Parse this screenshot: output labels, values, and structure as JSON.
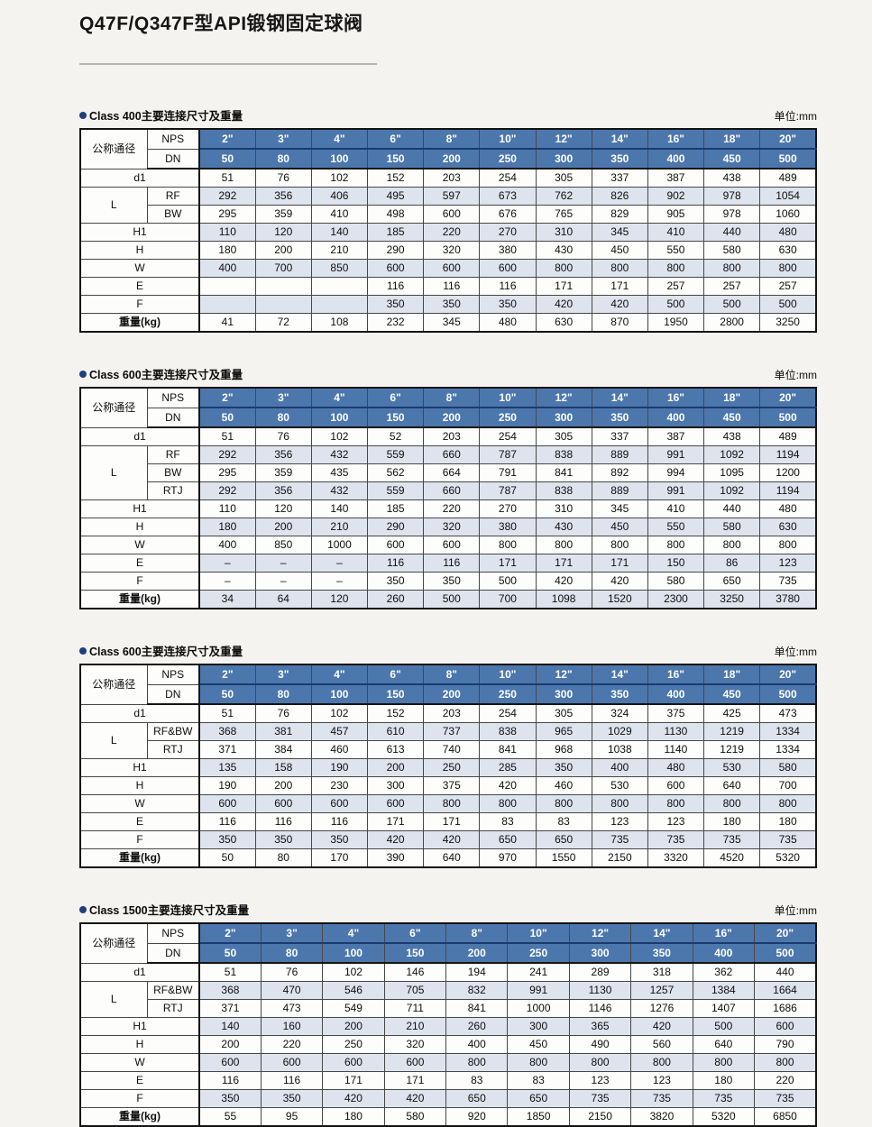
{
  "page": {
    "title": "Q47F/Q347F型API锻钢固定球阀"
  },
  "header_labels": {
    "size_group": "公称通径",
    "nps": "NPS",
    "dn": "DN"
  },
  "tables": [
    {
      "title": "Class 400主要连接尺寸及重量",
      "unit": "单位:mm",
      "nps": [
        "2\"",
        "3\"",
        "4\"",
        "6\"",
        "8\"",
        "10\"",
        "12\"",
        "14\"",
        "16\"",
        "18\"",
        "20\""
      ],
      "dn": [
        "50",
        "80",
        "100",
        "150",
        "200",
        "250",
        "300",
        "350",
        "400",
        "450",
        "500"
      ],
      "rows": [
        {
          "label": "d1",
          "values": [
            "51",
            "76",
            "102",
            "152",
            "203",
            "254",
            "305",
            "337",
            "387",
            "438",
            "489"
          ]
        },
        {
          "group": "L",
          "group_span": 2,
          "label": "RF",
          "values": [
            "292",
            "356",
            "406",
            "495",
            "597",
            "673",
            "762",
            "826",
            "902",
            "978",
            "1054"
          ]
        },
        {
          "label": "BW",
          "in_group": true,
          "values": [
            "295",
            "359",
            "410",
            "498",
            "600",
            "676",
            "765",
            "829",
            "905",
            "978",
            "1060"
          ]
        },
        {
          "label": "H1",
          "values": [
            "110",
            "120",
            "140",
            "185",
            "220",
            "270",
            "310",
            "345",
            "410",
            "440",
            "480"
          ]
        },
        {
          "label": "H",
          "values": [
            "180",
            "200",
            "210",
            "290",
            "320",
            "380",
            "430",
            "450",
            "550",
            "580",
            "630"
          ]
        },
        {
          "label": "W",
          "values": [
            "400",
            "700",
            "850",
            "600",
            "600",
            "600",
            "800",
            "800",
            "800",
            "800",
            "800"
          ]
        },
        {
          "label": "E",
          "values": [
            "",
            "",
            "",
            "116",
            "116",
            "116",
            "171",
            "171",
            "257",
            "257",
            "257"
          ]
        },
        {
          "label": "F",
          "values": [
            "",
            "",
            "",
            "350",
            "350",
            "350",
            "420",
            "420",
            "500",
            "500",
            "500"
          ]
        },
        {
          "label": "重量(kg)",
          "bold": true,
          "values": [
            "41",
            "72",
            "108",
            "232",
            "345",
            "480",
            "630",
            "870",
            "1950",
            "2800",
            "3250"
          ]
        }
      ]
    },
    {
      "title": "Class 600主要连接尺寸及重量",
      "unit": "单位:mm",
      "nps": [
        "2\"",
        "3\"",
        "4\"",
        "6\"",
        "8\"",
        "10\"",
        "12\"",
        "14\"",
        "16\"",
        "18\"",
        "20\""
      ],
      "dn": [
        "50",
        "80",
        "100",
        "150",
        "200",
        "250",
        "300",
        "350",
        "400",
        "450",
        "500"
      ],
      "rows": [
        {
          "label": "d1",
          "values": [
            "51",
            "76",
            "102",
            "52",
            "203",
            "254",
            "305",
            "337",
            "387",
            "438",
            "489"
          ]
        },
        {
          "group": "L",
          "group_span": 3,
          "label": "RF",
          "values": [
            "292",
            "356",
            "432",
            "559",
            "660",
            "787",
            "838",
            "889",
            "991",
            "1092",
            "1194"
          ]
        },
        {
          "label": "BW",
          "in_group": true,
          "values": [
            "295",
            "359",
            "435",
            "562",
            "664",
            "791",
            "841",
            "892",
            "994",
            "1095",
            "1200"
          ]
        },
        {
          "label": "RTJ",
          "in_group": true,
          "values": [
            "292",
            "356",
            "432",
            "559",
            "660",
            "787",
            "838",
            "889",
            "991",
            "1092",
            "1194"
          ]
        },
        {
          "label": "H1",
          "values": [
            "110",
            "120",
            "140",
            "185",
            "220",
            "270",
            "310",
            "345",
            "410",
            "440",
            "480"
          ]
        },
        {
          "label": "H",
          "values": [
            "180",
            "200",
            "210",
            "290",
            "320",
            "380",
            "430",
            "450",
            "550",
            "580",
            "630"
          ]
        },
        {
          "label": "W",
          "values": [
            "400",
            "850",
            "1000",
            "600",
            "600",
            "800",
            "800",
            "800",
            "800",
            "800",
            "800"
          ]
        },
        {
          "label": "E",
          "values": [
            "–",
            "–",
            "–",
            "116",
            "116",
            "171",
            "171",
            "171",
            "150",
            "86",
            "123"
          ]
        },
        {
          "label": "F",
          "values": [
            "–",
            "–",
            "–",
            "350",
            "350",
            "500",
            "420",
            "420",
            "580",
            "650",
            "735"
          ]
        },
        {
          "label": "重量(kg)",
          "bold": true,
          "values": [
            "34",
            "64",
            "120",
            "260",
            "500",
            "700",
            "1098",
            "1520",
            "2300",
            "3250",
            "3780"
          ]
        }
      ]
    },
    {
      "title": "Class 600主要连接尺寸及重量",
      "unit": "单位:mm",
      "nps": [
        "2\"",
        "3\"",
        "4\"",
        "6\"",
        "8\"",
        "10\"",
        "12\"",
        "14\"",
        "16\"",
        "18\"",
        "20\""
      ],
      "dn": [
        "50",
        "80",
        "100",
        "150",
        "200",
        "250",
        "300",
        "350",
        "400",
        "450",
        "500"
      ],
      "rows": [
        {
          "label": "d1",
          "values": [
            "51",
            "76",
            "102",
            "152",
            "203",
            "254",
            "305",
            "324",
            "375",
            "425",
            "473"
          ]
        },
        {
          "group": "L",
          "group_span": 2,
          "label": "RF&BW",
          "values": [
            "368",
            "381",
            "457",
            "610",
            "737",
            "838",
            "965",
            "1029",
            "1130",
            "1219",
            "1334"
          ]
        },
        {
          "label": "RTJ",
          "in_group": true,
          "values": [
            "371",
            "384",
            "460",
            "613",
            "740",
            "841",
            "968",
            "1038",
            "1140",
            "1219",
            "1334"
          ]
        },
        {
          "label": "H1",
          "values": [
            "135",
            "158",
            "190",
            "200",
            "250",
            "285",
            "350",
            "400",
            "480",
            "530",
            "580"
          ]
        },
        {
          "label": "H",
          "values": [
            "190",
            "200",
            "230",
            "300",
            "375",
            "420",
            "460",
            "530",
            "600",
            "640",
            "700"
          ]
        },
        {
          "label": "W",
          "values": [
            "600",
            "600",
            "600",
            "600",
            "800",
            "800",
            "800",
            "800",
            "800",
            "800",
            "800"
          ]
        },
        {
          "label": "E",
          "values": [
            "116",
            "116",
            "116",
            "171",
            "171",
            "83",
            "83",
            "123",
            "123",
            "180",
            "180"
          ]
        },
        {
          "label": "F",
          "values": [
            "350",
            "350",
            "350",
            "420",
            "420",
            "650",
            "650",
            "735",
            "735",
            "735",
            "735"
          ]
        },
        {
          "label": "重量(kg)",
          "bold": true,
          "values": [
            "50",
            "80",
            "170",
            "390",
            "640",
            "970",
            "1550",
            "2150",
            "3320",
            "4520",
            "5320"
          ]
        }
      ]
    },
    {
      "title": "Class 1500主要连接尺寸及重量",
      "unit": "单位:mm",
      "nps": [
        "2\"",
        "3\"",
        "4\"",
        "6\"",
        "8\"",
        "10\"",
        "12\"",
        "14\"",
        "16\"",
        "20\""
      ],
      "dn": [
        "50",
        "80",
        "100",
        "150",
        "200",
        "250",
        "300",
        "350",
        "400",
        "500"
      ],
      "rows": [
        {
          "label": "d1",
          "values": [
            "51",
            "76",
            "102",
            "146",
            "194",
            "241",
            "289",
            "318",
            "362",
            "440"
          ]
        },
        {
          "group": "L",
          "group_span": 2,
          "label": "RF&BW",
          "values": [
            "368",
            "470",
            "546",
            "705",
            "832",
            "991",
            "1130",
            "1257",
            "1384",
            "1664"
          ]
        },
        {
          "label": "RTJ",
          "in_group": true,
          "values": [
            "371",
            "473",
            "549",
            "711",
            "841",
            "1000",
            "1146",
            "1276",
            "1407",
            "1686"
          ]
        },
        {
          "label": "H1",
          "values": [
            "140",
            "160",
            "200",
            "210",
            "260",
            "300",
            "365",
            "420",
            "500",
            "600"
          ]
        },
        {
          "label": "H",
          "values": [
            "200",
            "220",
            "250",
            "320",
            "400",
            "450",
            "490",
            "560",
            "640",
            "790"
          ]
        },
        {
          "label": "W",
          "values": [
            "600",
            "600",
            "600",
            "600",
            "800",
            "800",
            "800",
            "800",
            "800",
            "800"
          ]
        },
        {
          "label": "E",
          "values": [
            "116",
            "116",
            "171",
            "171",
            "83",
            "83",
            "123",
            "123",
            "180",
            "220"
          ]
        },
        {
          "label": "F",
          "values": [
            "350",
            "350",
            "420",
            "420",
            "650",
            "650",
            "735",
            "735",
            "735",
            "735"
          ]
        },
        {
          "label": "重量(kg)",
          "bold": true,
          "values": [
            "55",
            "95",
            "180",
            "580",
            "920",
            "1850",
            "2150",
            "3820",
            "5320",
            "6850"
          ]
        }
      ]
    }
  ]
}
